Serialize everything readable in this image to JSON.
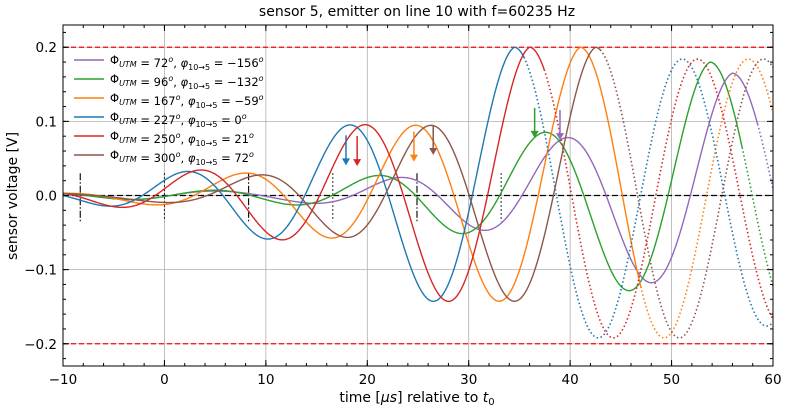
{
  "chart_data": {
    "type": "line",
    "title": "sensor 5, emitter on line 10 with f=60235 Hz",
    "xlabel": "time [μs] relative to t₀",
    "ylabel": "sensor voltage [V]",
    "xlim": [
      -10,
      60
    ],
    "ylim": [
      -0.23,
      0.23
    ],
    "xticks": [
      -10,
      0,
      10,
      20,
      30,
      40,
      50,
      60
    ],
    "xtick_labels": [
      "−10",
      "0",
      "10",
      "20",
      "30",
      "40",
      "50",
      "60"
    ],
    "yticks": [
      -0.2,
      -0.1,
      0.0,
      0.1,
      0.2
    ],
    "ytick_labels": [
      "−0.2",
      "−0.1",
      "0.0",
      "0.1",
      "0.2"
    ],
    "grid": true,
    "legend_position": "top-left",
    "thresholds": [
      0.2,
      -0.2
    ],
    "zero_line": 0.0,
    "period_us": 16.6,
    "onset_markers": [
      {
        "t": -8.3,
        "style": "dashdot"
      },
      {
        "t": 0.0,
        "style": "dotted"
      },
      {
        "t": 8.3,
        "style": "dashdot"
      },
      {
        "t": 16.6,
        "style": "dotted"
      },
      {
        "t": 24.9,
        "style": "dashdot"
      },
      {
        "t": 33.2,
        "style": "dotted"
      }
    ],
    "series": [
      {
        "name": "ΦUTM = 72°, φ10→5 = −156°",
        "color": "#9467bd",
        "phi_utm": 72,
        "phi_rel": -156,
        "peak_t": 56.0,
        "amp": 0.165,
        "solid_until": 58.5,
        "arrow": {
          "t": 39.0,
          "y": 0.072
        }
      },
      {
        "name": "ΦUTM = 96°, φ10→5 = −132°",
        "color": "#2ca02c",
        "phi_utm": 96,
        "phi_rel": -132,
        "peak_t": 53.8,
        "amp": 0.18,
        "solid_until": 57.0,
        "arrow": {
          "t": 36.5,
          "y": 0.075
        }
      },
      {
        "name": "ΦUTM = 167°, φ10→5 = −59°",
        "color": "#ff7f0e",
        "phi_utm": 167,
        "phi_rel": -59,
        "peak_t": 41.0,
        "amp": 0.2,
        "solid_until": 47.0,
        "arrow": {
          "t": 24.6,
          "y": 0.043
        }
      },
      {
        "name": "ΦUTM = 227°, φ10→5 = 0°",
        "color": "#1f77b4",
        "phi_utm": 227,
        "phi_rel": 0,
        "peak_t": 34.5,
        "amp": 0.2,
        "solid_until": 35.5,
        "arrow": {
          "t": 17.9,
          "y": 0.038
        }
      },
      {
        "name": "ΦUTM = 250°, φ10→5 = 21°",
        "color": "#d62728",
        "phi_utm": 250,
        "phi_rel": 21,
        "peak_t": 36.0,
        "amp": 0.2,
        "solid_until": 37.5,
        "arrow": {
          "t": 19.0,
          "y": 0.037
        }
      },
      {
        "name": "ΦUTM = 300°, φ10→5 = 72°",
        "color": "#8c564b",
        "phi_utm": 300,
        "phi_rel": 72,
        "peak_t": 42.5,
        "amp": 0.2,
        "solid_until": 43.0,
        "arrow": {
          "t": 26.5,
          "y": 0.052
        }
      }
    ]
  }
}
